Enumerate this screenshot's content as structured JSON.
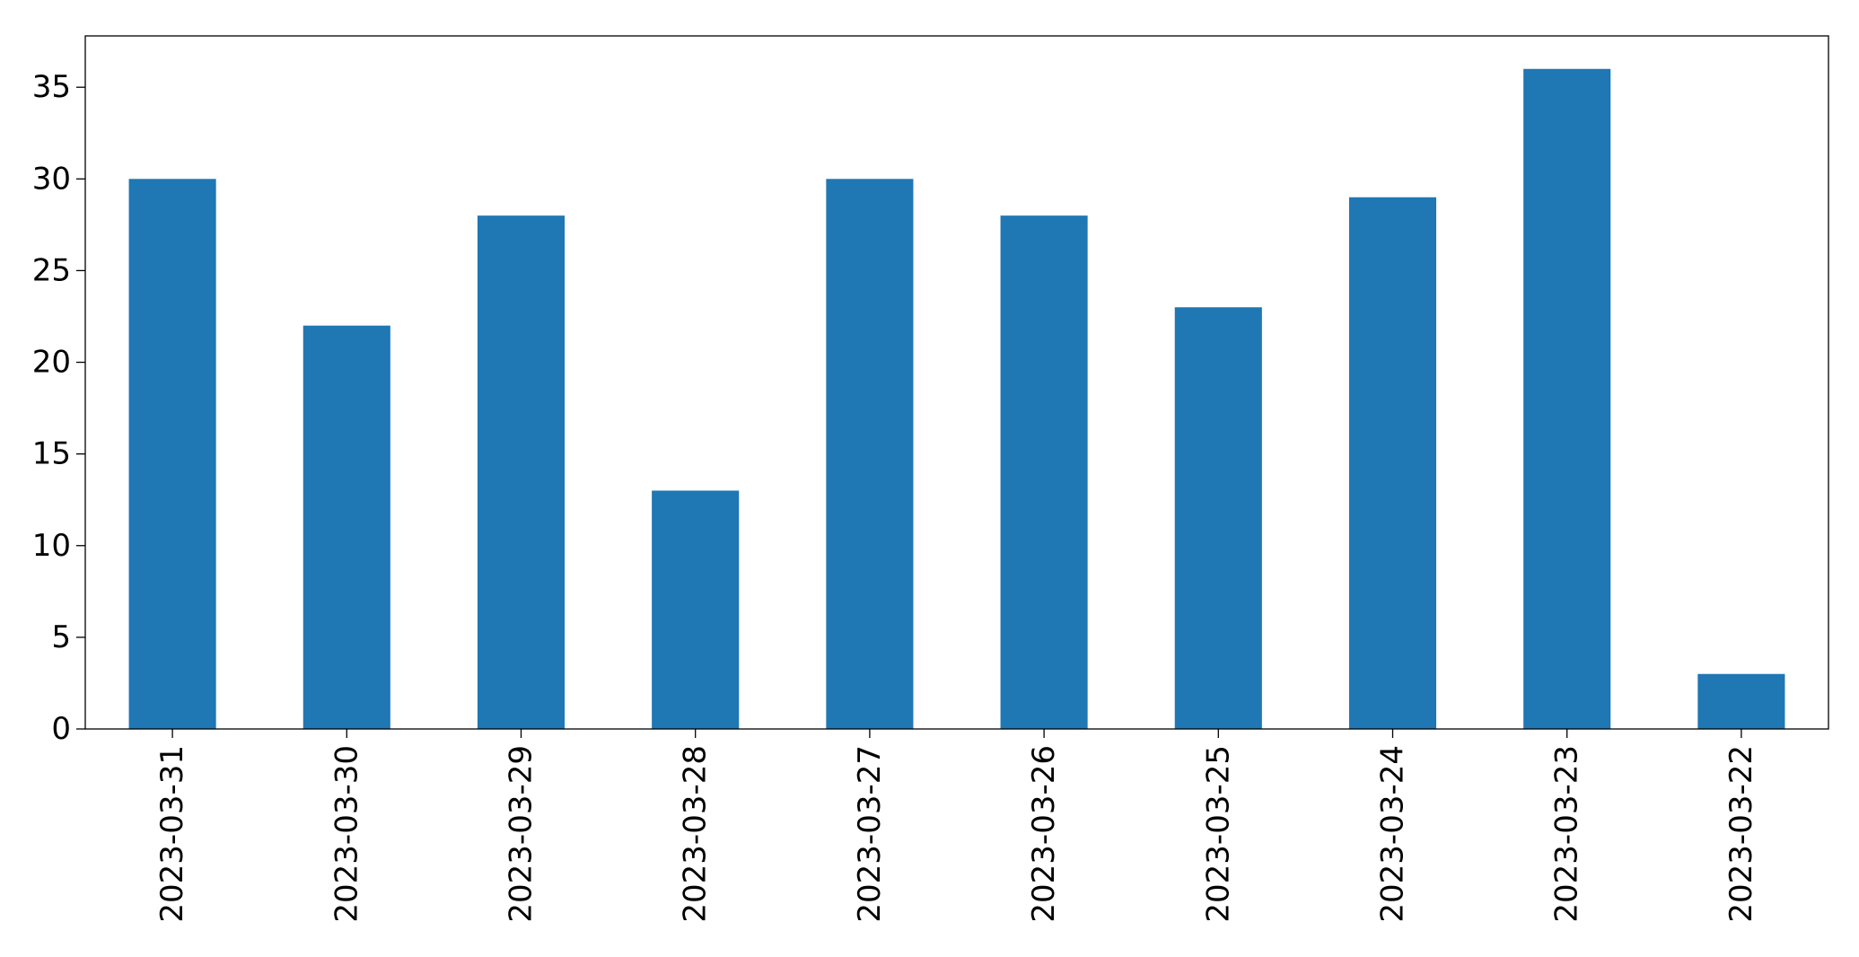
{
  "chart_data": {
    "type": "bar",
    "categories": [
      "2023-03-31",
      "2023-03-30",
      "2023-03-29",
      "2023-03-28",
      "2023-03-27",
      "2023-03-26",
      "2023-03-25",
      "2023-03-24",
      "2023-03-23",
      "2023-03-22"
    ],
    "series": [
      {
        "values": [
          30,
          22,
          28,
          13,
          30,
          28,
          23,
          29,
          36,
          3
        ],
        "color": "#1f77b4"
      }
    ],
    "title": "",
    "xlabel": "",
    "ylabel": "",
    "ylim": [
      0,
      37.8
    ],
    "yticks": [
      0,
      5,
      10,
      15,
      20,
      25,
      30,
      35
    ],
    "grid": false,
    "legend": "none"
  }
}
